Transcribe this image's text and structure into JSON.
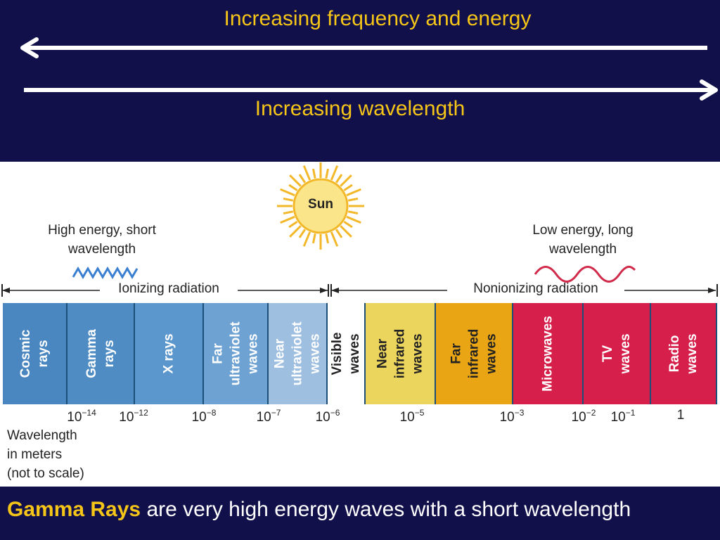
{
  "header": {
    "top_label": "Increasing frequency and energy",
    "bottom_label": "Increasing wavelength"
  },
  "diagram": {
    "sun_label": "Sun",
    "high_energy": "High energy, short\nwavelength",
    "low_energy": "Low energy, long\nwavelength",
    "ionizing": "Ionizing radiation",
    "nonionizing": "Nonionizing radiation",
    "wavelength_note": "Wavelength\nin meters\n(not to scale)",
    "bands": [
      {
        "label": "Cosmic\nrays",
        "color": "#4a86bf",
        "text_color": "#ffffff"
      },
      {
        "label": "Gamma\nrays",
        "color": "#4f8cc4",
        "text_color": "#ffffff"
      },
      {
        "label": "X rays",
        "color": "#5b96cc",
        "text_color": "#ffffff"
      },
      {
        "label": "Far\nultraviolet\nwaves",
        "color": "#6ea2d3",
        "text_color": "#ffffff"
      },
      {
        "label": "Near\nultraviolet\nwaves",
        "color": "#9fbfe1",
        "text_color": "#ffffff"
      },
      {
        "label": "Visible\nwaves",
        "color": "#ffffff",
        "text_color": "#222222"
      },
      {
        "label": "Near\ninfrared\nwaves",
        "color": "#ecd55c",
        "text_color": "#222222"
      },
      {
        "label": "Far\ninfrared\nwaves",
        "color": "#eaa514",
        "text_color": "#222222"
      },
      {
        "label": "Microwaves",
        "color": "#d61f4a",
        "text_color": "#ffffff"
      },
      {
        "label": "TV\nwaves",
        "color": "#d61f4a",
        "text_color": "#ffffff"
      },
      {
        "label": "Radio\nwaves",
        "color": "#d61f4a",
        "text_color": "#ffffff"
      }
    ],
    "ticks": [
      {
        "base": "10",
        "exp": "−14"
      },
      {
        "base": "10",
        "exp": "−12"
      },
      {
        "base": "10",
        "exp": "−8"
      },
      {
        "base": "10",
        "exp": "−7"
      },
      {
        "base": "10",
        "exp": "−6"
      },
      {
        "base": "10",
        "exp": "−5"
      },
      {
        "base": "10",
        "exp": "−3"
      },
      {
        "base": "10",
        "exp": "−2"
      },
      {
        "base": "10",
        "exp": "−1"
      },
      {
        "base": "1",
        "exp": ""
      }
    ]
  },
  "caption": {
    "emphasis": "Gamma Rays",
    "rest": " are very high energy waves with a short wavelength"
  }
}
